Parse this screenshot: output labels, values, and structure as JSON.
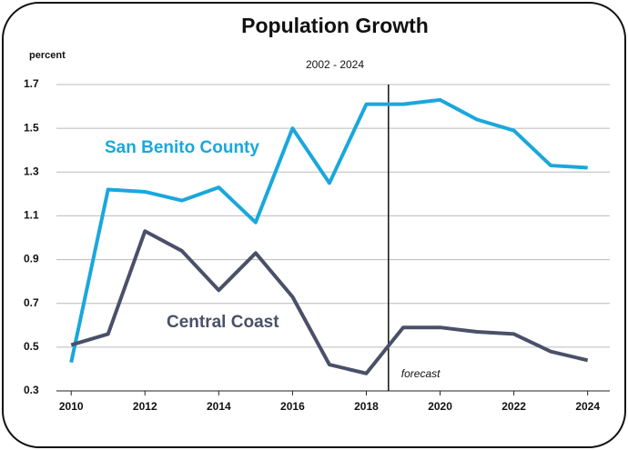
{
  "chart_data": {
    "type": "line",
    "title": "Population Growth",
    "subtitle": "2002 - 2024",
    "ylabel": "percent",
    "x": [
      2010,
      2011,
      2012,
      2013,
      2014,
      2015,
      2016,
      2017,
      2018,
      2019,
      2020,
      2021,
      2022,
      2023,
      2024
    ],
    "series": [
      {
        "name": "San Benito County",
        "color": "#1aa7dc",
        "values": [
          0.43,
          1.22,
          1.21,
          1.17,
          1.23,
          1.07,
          1.5,
          1.25,
          1.61,
          1.61,
          1.63,
          1.54,
          1.49,
          1.33,
          1.32
        ]
      },
      {
        "name": "Central Coast",
        "color": "#4a5068",
        "values": [
          0.51,
          0.56,
          1.03,
          0.94,
          0.76,
          0.93,
          0.73,
          0.42,
          0.38,
          0.59,
          0.59,
          0.57,
          0.56,
          0.48,
          0.44
        ]
      }
    ],
    "xlim": [
      2009.6,
      2024.6
    ],
    "xticks": [
      2010,
      2012,
      2014,
      2016,
      2018,
      2020,
      2022,
      2024
    ],
    "ylim": [
      0.3,
      1.7
    ],
    "yticks": [
      0.3,
      0.5,
      0.7,
      0.9,
      1.1,
      1.3,
      1.5,
      1.7
    ],
    "grid": true,
    "annotations": [
      {
        "text": "forecast",
        "x": 2018.6
      }
    ]
  }
}
